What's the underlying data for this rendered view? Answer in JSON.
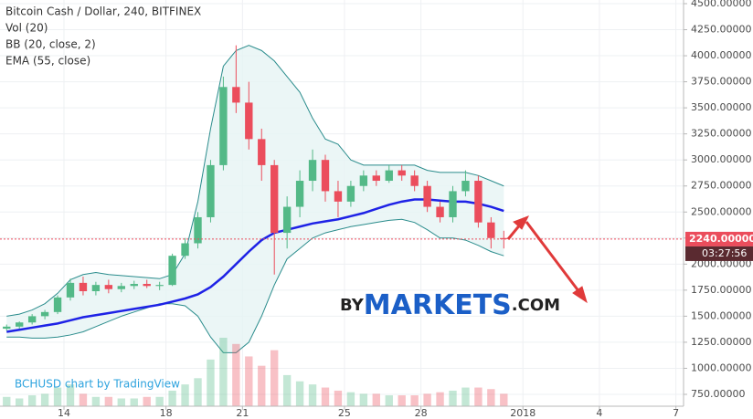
{
  "chart_data": {
    "type": "candlestick",
    "title": "Bitcoin Cash / Dollar, 240, BITFINEX",
    "indicators": [
      "Vol (20)",
      "BB (20, close, 2)",
      "EMA (55, close)"
    ],
    "up_color": "#53b987",
    "down_color": "#eb4d5c",
    "x": [
      11.75,
      12.25,
      12.75,
      13.25,
      13.75,
      14.25,
      14.75,
      15.25,
      15.75,
      16.25,
      16.75,
      17.25,
      17.75,
      18.25,
      18.75,
      19.25,
      19.75,
      20.25,
      20.75,
      21.25,
      21.75,
      22.25,
      22.75,
      23.25,
      23.75,
      24.25,
      24.75,
      25.25,
      25.75,
      26.25,
      26.75,
      27.25,
      27.75,
      28.25,
      28.75,
      29.25,
      29.75,
      30.25,
      30.75,
      31.25
    ],
    "open": [
      1380,
      1400,
      1440,
      1500,
      1540,
      1680,
      1820,
      1740,
      1800,
      1760,
      1790,
      1810,
      1790,
      1800,
      2080,
      2200,
      2450,
      2950,
      3700,
      3550,
      3200,
      2950,
      2300,
      2550,
      2800,
      3000,
      2700,
      2600,
      2750,
      2850,
      2800,
      2900,
      2850,
      2750,
      2550,
      2450,
      2700,
      2800,
      2400,
      2250
    ],
    "high": [
      1420,
      1450,
      1520,
      1560,
      1700,
      1860,
      1880,
      1830,
      1850,
      1820,
      1840,
      1850,
      1830,
      2100,
      2250,
      2500,
      3000,
      3800,
      4100,
      3750,
      3300,
      3000,
      2650,
      2900,
      3100,
      3050,
      2800,
      2800,
      2900,
      2900,
      2950,
      2950,
      2900,
      2800,
      2600,
      2750,
      2900,
      2850,
      2450,
      2320
    ],
    "low": [
      1360,
      1380,
      1420,
      1470,
      1520,
      1650,
      1700,
      1700,
      1720,
      1730,
      1760,
      1770,
      1750,
      1790,
      2050,
      2150,
      2400,
      2900,
      3450,
      3100,
      2800,
      1900,
      2150,
      2450,
      2700,
      2600,
      2450,
      2550,
      2700,
      2750,
      2780,
      2800,
      2700,
      2500,
      2400,
      2400,
      2650,
      2350,
      2150,
      2150
    ],
    "close": [
      1400,
      1440,
      1500,
      1540,
      1680,
      1820,
      1740,
      1800,
      1760,
      1790,
      1810,
      1790,
      1800,
      2080,
      2200,
      2450,
      2950,
      3700,
      3550,
      3200,
      2950,
      2300,
      2550,
      2800,
      3000,
      2700,
      2600,
      2750,
      2850,
      2800,
      2900,
      2850,
      2750,
      2550,
      2450,
      2700,
      2800,
      2400,
      2250,
      2240
    ],
    "volume": [
      30,
      25,
      35,
      40,
      60,
      70,
      40,
      30,
      30,
      25,
      25,
      30,
      30,
      50,
      70,
      90,
      150,
      220,
      200,
      160,
      130,
      180,
      100,
      80,
      70,
      60,
      50,
      45,
      40,
      40,
      35,
      35,
      35,
      40,
      45,
      50,
      60,
      60,
      55,
      40
    ],
    "ema": {
      "name": "EMA (55, close)",
      "color": "#1e22e6",
      "values": [
        1350,
        1370,
        1390,
        1410,
        1430,
        1460,
        1490,
        1510,
        1530,
        1550,
        1570,
        1590,
        1610,
        1640,
        1670,
        1710,
        1780,
        1880,
        2000,
        2120,
        2230,
        2300,
        2330,
        2360,
        2390,
        2410,
        2430,
        2460,
        2490,
        2530,
        2570,
        2600,
        2620,
        2620,
        2610,
        2600,
        2600,
        2580,
        2550,
        2510
      ]
    },
    "bb_color": "#2a8c8c",
    "bb_fill": "#e6f4f4",
    "bb_upper": [
      1500,
      1520,
      1560,
      1620,
      1720,
      1850,
      1900,
      1920,
      1900,
      1890,
      1880,
      1870,
      1860,
      1900,
      2100,
      2600,
      3300,
      3900,
      4050,
      4100,
      4050,
      3950,
      3800,
      3650,
      3400,
      3200,
      3150,
      3000,
      2950,
      2950,
      2950,
      2950,
      2950,
      2900,
      2880,
      2880,
      2880,
      2850,
      2800,
      2750
    ],
    "bb_lower": [
      1300,
      1300,
      1290,
      1290,
      1300,
      1320,
      1350,
      1400,
      1450,
      1500,
      1540,
      1580,
      1620,
      1620,
      1600,
      1500,
      1300,
      1150,
      1150,
      1250,
      1500,
      1800,
      2050,
      2150,
      2250,
      2300,
      2330,
      2360,
      2380,
      2400,
      2420,
      2430,
      2400,
      2330,
      2250,
      2250,
      2230,
      2180,
      2120,
      2080
    ],
    "xlim": [
      11.49,
      38.3
    ],
    "xticks": [
      14,
      18,
      21,
      25,
      28,
      {
        "value": 32,
        "label": "2018"
      },
      {
        "value": 35,
        "label": "4"
      },
      {
        "value": 38,
        "label": "7"
      }
    ],
    "ylim": [
      636,
      4535
    ],
    "yticks": [
      {
        "value": 750,
        "label": "750.00000"
      },
      {
        "value": 1000,
        "label": "1000.00000"
      },
      {
        "value": 1250,
        "label": "1250.00000"
      },
      {
        "value": 1500,
        "label": "1500.00000"
      },
      {
        "value": 1750,
        "label": "1750.00000"
      },
      {
        "value": 2000,
        "label": "2000.00000"
      },
      {
        "value": 2250,
        "label": "2250.00000"
      },
      {
        "value": 2500,
        "label": "2500.00000"
      },
      {
        "value": 2750,
        "label": "2750.00000"
      },
      {
        "value": 3000,
        "label": "3000.00000"
      },
      {
        "value": 3250,
        "label": "3250.00000"
      },
      {
        "value": 3500,
        "label": "3500.00000"
      },
      {
        "value": 3750,
        "label": "3750.00000"
      },
      {
        "value": 4000,
        "label": "4000.00000"
      },
      {
        "value": 4250,
        "label": "4250.00000"
      },
      {
        "value": 4500,
        "label": "4500.00000"
      }
    ],
    "grid": true,
    "last_price": 2240,
    "last_price_label": "2240.00000",
    "countdown": "03:27:56",
    "watermark": {
      "prefix": "BY",
      "brand": "MARKETS",
      "suffix": ".COM"
    },
    "attribution": "BCHUSD chart by TradingView"
  }
}
